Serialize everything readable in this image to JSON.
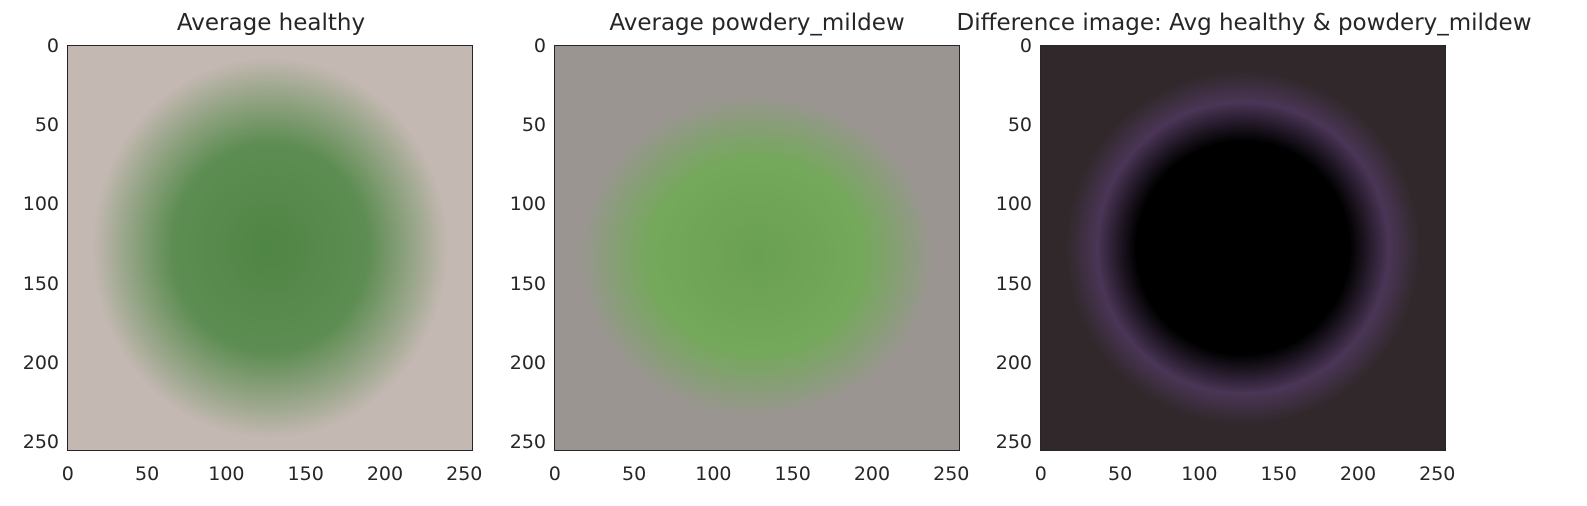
{
  "panels": [
    {
      "title": "Average healthy",
      "background_color": "#c4b8b2",
      "leaf_color": "#5d8d52",
      "leaf_dark_color": "#4f8544"
    },
    {
      "title": "Average powdery_mildew",
      "background_color": "#9b9592",
      "leaf_color": "#74a85b",
      "leaf_dark_color": "#6aa052"
    },
    {
      "title": "Difference image: Avg healthy & powdery_mildew",
      "background_color": "#30282a",
      "leaf_color": "#000000",
      "ring_color": "#4a3556"
    }
  ],
  "axis": {
    "yticks": [
      "0",
      "50",
      "100",
      "150",
      "200",
      "250"
    ],
    "xticks": [
      "0",
      "50",
      "100",
      "150",
      "200",
      "250"
    ]
  }
}
